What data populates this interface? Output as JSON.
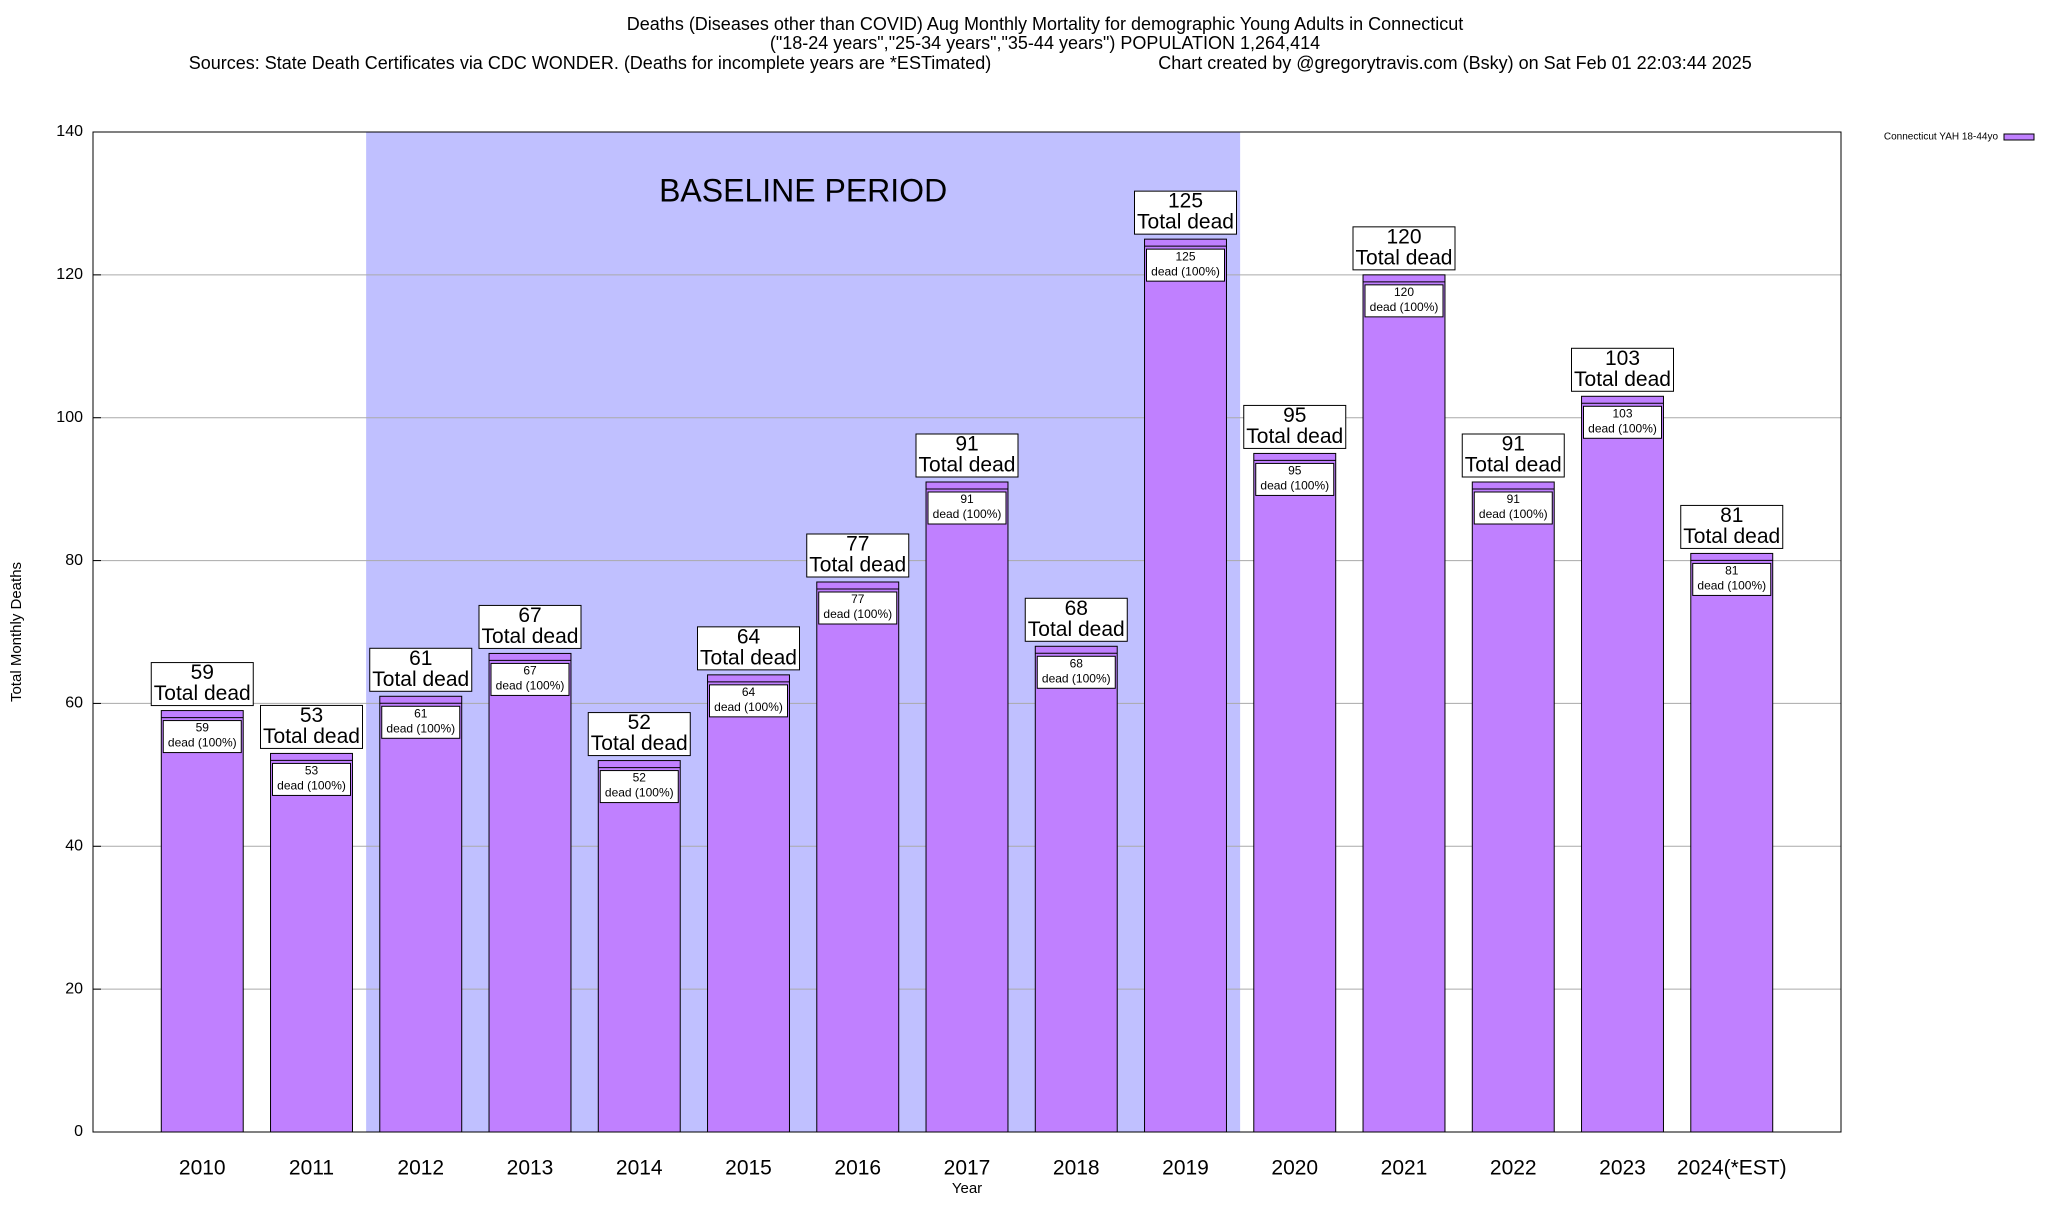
{
  "chart_data": {
    "type": "bar",
    "title_lines": [
      "Deaths (Diseases other than COVID) Aug Monthly Mortality for demographic Young Adults in Connecticut",
      "(\"18-24 years\",\"25-34 years\",\"35-44 years\") POPULATION 1,264,414"
    ],
    "sources": "Sources: State Death Certificates via CDC WONDER. (Deaths for incomplete years are *ESTimated)",
    "credit": "Chart created by @gregorytravis.com (Bsky) on Sat Feb 01 22:03:44 2025",
    "x_label": "Year",
    "y_label": "Total Monthly Deaths",
    "categories": [
      "2010",
      "2011",
      "2012",
      "2013",
      "2014",
      "2015",
      "2016",
      "2017",
      "2018",
      "2019",
      "2020",
      "2021",
      "2022",
      "2023",
      "2024(*EST)"
    ],
    "series": [
      {
        "name": "Connecticut YAH 18-44yo",
        "color": "#c080ff",
        "values": [
          59,
          53,
          61,
          67,
          52,
          64,
          77,
          91,
          68,
          125,
          95,
          120,
          91,
          103,
          81
        ]
      }
    ],
    "total_label": "Total dead",
    "segment_label": "dead (100%)",
    "shaded_range": {
      "label": "BASELINE PERIOD",
      "start": "2012",
      "end": "2019",
      "color": "#c0c0ff"
    },
    "ylim": [
      0,
      140
    ],
    "yticks": [
      0,
      20,
      40,
      60,
      80,
      100,
      120,
      140
    ],
    "grid": true,
    "legend": "top-right"
  }
}
